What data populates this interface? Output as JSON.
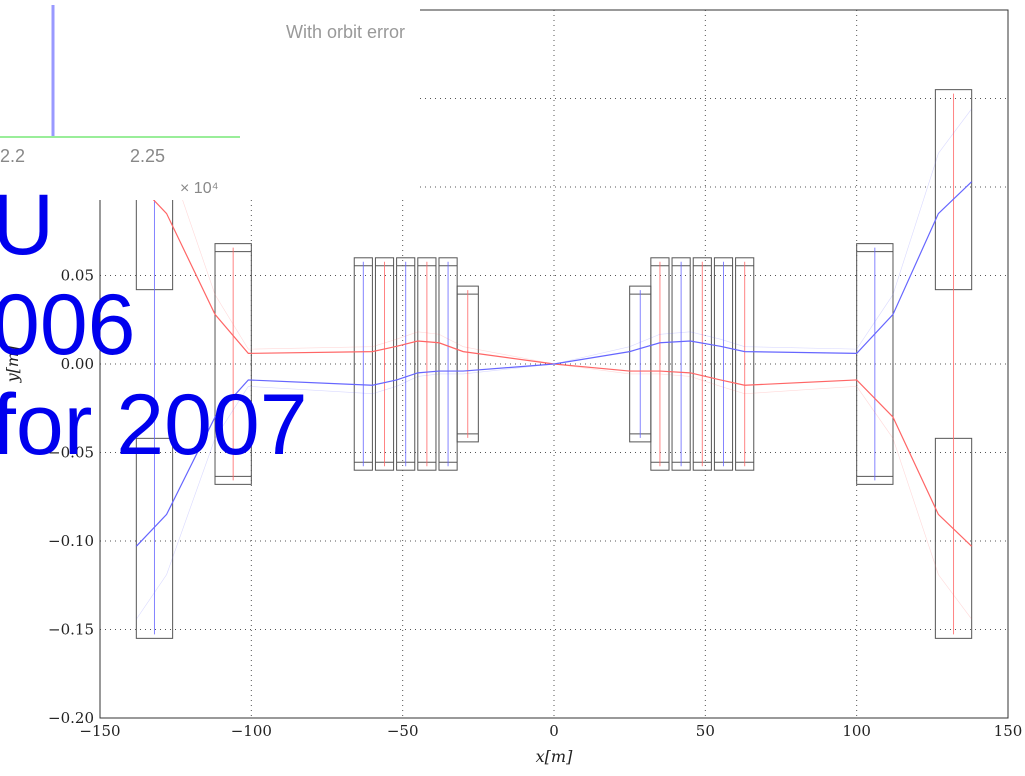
{
  "chart_data": {
    "type": "line",
    "xlabel": "x[m]",
    "ylabel": "y[m]",
    "xlim": [
      -150,
      150
    ],
    "ylim": [
      -0.2,
      0.2
    ],
    "grid": true,
    "x_ticks": [
      "−150",
      "−100",
      "−50",
      "0",
      "50",
      "100",
      "150"
    ],
    "y_ticks": [
      "−0.20",
      "−0.15",
      "−0.10",
      "−0.05",
      "0.00",
      "0.05"
    ],
    "series": [
      {
        "color": "#ff6666",
        "x": [
          -138,
          -128,
          -112,
          -101,
          -60,
          -52,
          -45,
          -38,
          -30,
          0,
          25,
          35,
          45,
          55,
          63,
          100,
          112,
          127,
          138
        ],
        "y": [
          0.103,
          0.085,
          0.028,
          0.006,
          0.007,
          0.01,
          0.013,
          0.012,
          0.007,
          0.0,
          -0.004,
          -0.004,
          -0.005,
          -0.009,
          -0.012,
          -0.009,
          -0.03,
          -0.085,
          -0.103
        ]
      },
      {
        "color": "#6666ff",
        "x": [
          -138,
          -128,
          -112,
          -101,
          -60,
          -52,
          -45,
          -38,
          -30,
          0,
          25,
          35,
          45,
          55,
          63,
          100,
          112,
          127,
          138
        ],
        "y": [
          -0.103,
          -0.085,
          -0.03,
          -0.009,
          -0.012,
          -0.009,
          -0.005,
          -0.004,
          -0.004,
          0.0,
          0.007,
          0.012,
          0.013,
          0.01,
          0.007,
          0.006,
          0.028,
          0.085,
          0.103
        ]
      }
    ],
    "apertures": [
      {
        "x0": -138,
        "x1": -126,
        "half_gap": 0.042,
        "half_outer": 0.155
      },
      {
        "x0": -112,
        "x1": -100,
        "half_gap": 0.0,
        "half_outer": 0.068
      },
      {
        "x0": -66,
        "x1": -60,
        "half_gap": 0.0,
        "half_outer": 0.06
      },
      {
        "x0": -59,
        "x1": -53,
        "half_gap": 0.0,
        "half_outer": 0.06
      },
      {
        "x0": -52,
        "x1": -46,
        "half_gap": 0.0,
        "half_outer": 0.06
      },
      {
        "x0": -45,
        "x1": -39,
        "half_gap": 0.0,
        "half_outer": 0.06
      },
      {
        "x0": -38,
        "x1": -32,
        "half_gap": 0.0,
        "half_outer": 0.06
      },
      {
        "x0": -32,
        "x1": -25,
        "half_gap": 0.0,
        "half_outer": 0.044
      },
      {
        "x0": 25,
        "x1": 32,
        "half_gap": 0.0,
        "half_outer": 0.044
      },
      {
        "x0": 32,
        "x1": 38,
        "half_gap": 0.0,
        "half_outer": 0.06
      },
      {
        "x0": 39,
        "x1": 45,
        "half_gap": 0.0,
        "half_outer": 0.06
      },
      {
        "x0": 46,
        "x1": 52,
        "half_gap": 0.0,
        "half_outer": 0.06
      },
      {
        "x0": 53,
        "x1": 59,
        "half_gap": 0.0,
        "half_outer": 0.06
      },
      {
        "x0": 60,
        "x1": 66,
        "half_gap": 0.0,
        "half_outer": 0.06
      },
      {
        "x0": 100,
        "x1": 112,
        "half_gap": 0.0,
        "half_outer": 0.068
      },
      {
        "x0": 126,
        "x1": 138,
        "half_gap": 0.042,
        "half_outer": 0.155
      }
    ]
  },
  "inset": {
    "ticks": [
      "2.2",
      "2.25"
    ],
    "exponent": "× 10⁴",
    "legend": "With orbit error"
  },
  "overlay": {
    "lines": [
      "U",
      "006",
      "for 2007"
    ]
  }
}
